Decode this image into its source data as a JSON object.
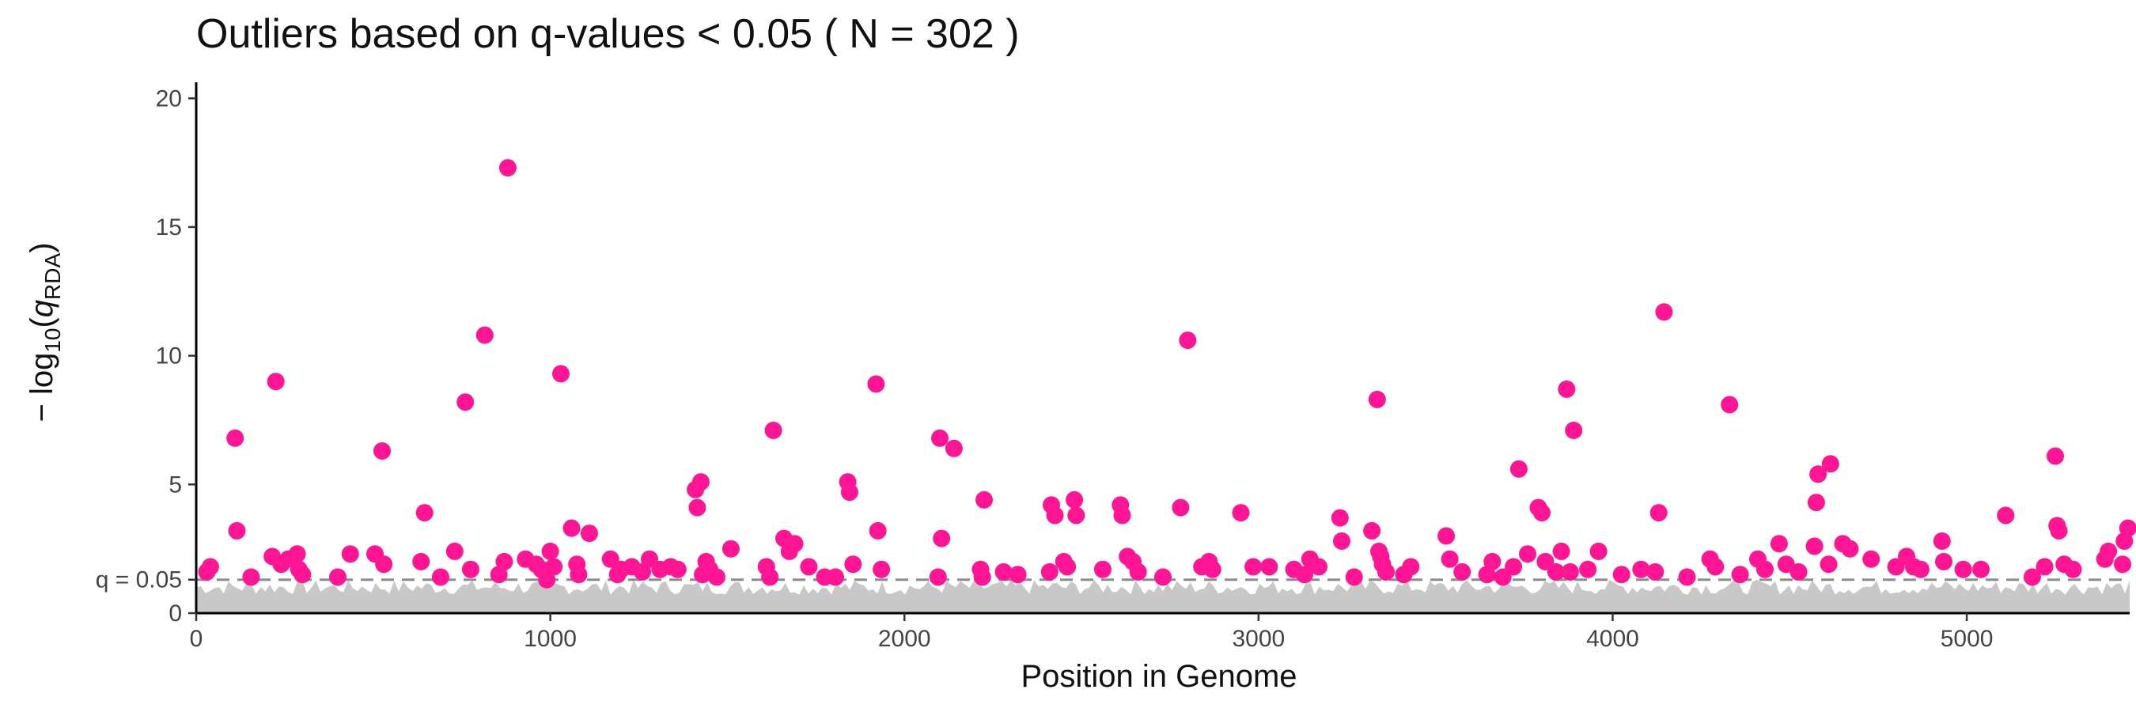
{
  "chart_data": {
    "type": "scatter",
    "title": "Outliers based on q-values < 0.05 ( N = 302 )",
    "xlabel": "Position in Genome",
    "ylabel": {
      "prefix": "− log",
      "sub1": "10",
      "open": "(",
      "var": "q",
      "sub2": "RDA",
      "close": ")"
    },
    "xlim": [
      0,
      5460
    ],
    "ylim": [
      0,
      20.5
    ],
    "x_ticks": [
      0,
      1000,
      2000,
      3000,
      4000,
      5000
    ],
    "x_tick_labels": [
      "0",
      "1000",
      "2000",
      "3000",
      "4000",
      "5000"
    ],
    "y_ticks": [
      0,
      1.3,
      5,
      10,
      15,
      20
    ],
    "y_tick_labels": [
      "0",
      "q = 0.05",
      "5",
      "10",
      "15",
      "20"
    ],
    "threshold": {
      "y": 1.3,
      "label": "q = 0.05",
      "style": "dashed",
      "color": "#8c8c8c"
    },
    "grid": false,
    "colors": {
      "outlier": "#ff1493",
      "background": "#c8c8c8",
      "threshold": "#8c8c8c"
    },
    "background_band": {
      "description": "non-significant loci",
      "x": [
        0,
        5460
      ],
      "y_max_approx": 1.3
    },
    "series": [
      {
        "points": [
          [
            30,
            1.6
          ],
          [
            40,
            1.8
          ],
          [
            110,
            6.8
          ],
          [
            115,
            3.2
          ],
          [
            155,
            1.4
          ],
          [
            215,
            2.2
          ],
          [
            225,
            9.0
          ],
          [
            240,
            1.9
          ],
          [
            260,
            2.1
          ],
          [
            285,
            2.3
          ],
          [
            290,
            1.7
          ],
          [
            300,
            1.5
          ],
          [
            400,
            1.4
          ],
          [
            435,
            2.3
          ],
          [
            505,
            2.3
          ],
          [
            525,
            6.3
          ],
          [
            530,
            1.9
          ],
          [
            635,
            2.0
          ],
          [
            645,
            3.9
          ],
          [
            690,
            1.4
          ],
          [
            730,
            2.4
          ],
          [
            760,
            8.2
          ],
          [
            775,
            1.7
          ],
          [
            815,
            10.8
          ],
          [
            855,
            1.5
          ],
          [
            870,
            2.0
          ],
          [
            880,
            17.3
          ],
          [
            930,
            2.1
          ],
          [
            960,
            1.9
          ],
          [
            975,
            1.7
          ],
          [
            990,
            1.3
          ],
          [
            1000,
            2.4
          ],
          [
            1010,
            1.8
          ],
          [
            1030,
            9.3
          ],
          [
            1060,
            3.3
          ],
          [
            1075,
            1.9
          ],
          [
            1080,
            1.5
          ],
          [
            1110,
            3.1
          ],
          [
            1170,
            2.1
          ],
          [
            1190,
            1.5
          ],
          [
            1200,
            1.7
          ],
          [
            1230,
            1.8
          ],
          [
            1260,
            1.6
          ],
          [
            1280,
            2.1
          ],
          [
            1310,
            1.7
          ],
          [
            1340,
            1.8
          ],
          [
            1360,
            1.7
          ],
          [
            1410,
            4.8
          ],
          [
            1415,
            4.1
          ],
          [
            1425,
            5.1
          ],
          [
            1430,
            1.5
          ],
          [
            1440,
            2.0
          ],
          [
            1450,
            1.7
          ],
          [
            1470,
            1.4
          ],
          [
            1510,
            2.5
          ],
          [
            1610,
            1.8
          ],
          [
            1620,
            1.4
          ],
          [
            1630,
            7.1
          ],
          [
            1660,
            2.9
          ],
          [
            1675,
            2.4
          ],
          [
            1690,
            2.7
          ],
          [
            1730,
            1.8
          ],
          [
            1775,
            1.4
          ],
          [
            1805,
            1.4
          ],
          [
            1840,
            5.1
          ],
          [
            1845,
            4.7
          ],
          [
            1855,
            1.9
          ],
          [
            1920,
            8.9
          ],
          [
            1925,
            3.2
          ],
          [
            1935,
            1.7
          ],
          [
            2095,
            1.4
          ],
          [
            2100,
            6.8
          ],
          [
            2105,
            2.9
          ],
          [
            2140,
            6.4
          ],
          [
            2215,
            1.7
          ],
          [
            2220,
            1.4
          ],
          [
            2225,
            4.4
          ],
          [
            2280,
            1.6
          ],
          [
            2320,
            1.5
          ],
          [
            2410,
            1.6
          ],
          [
            2415,
            4.2
          ],
          [
            2425,
            3.8
          ],
          [
            2450,
            2.0
          ],
          [
            2460,
            1.8
          ],
          [
            2480,
            4.4
          ],
          [
            2485,
            3.8
          ],
          [
            2560,
            1.7
          ],
          [
            2610,
            4.2
          ],
          [
            2615,
            3.8
          ],
          [
            2630,
            2.2
          ],
          [
            2645,
            2.0
          ],
          [
            2660,
            1.6
          ],
          [
            2730,
            1.4
          ],
          [
            2780,
            4.1
          ],
          [
            2800,
            10.6
          ],
          [
            2840,
            1.8
          ],
          [
            2860,
            2.0
          ],
          [
            2870,
            1.7
          ],
          [
            2950,
            3.9
          ],
          [
            2985,
            1.8
          ],
          [
            3030,
            1.8
          ],
          [
            3100,
            1.7
          ],
          [
            3130,
            1.5
          ],
          [
            3145,
            2.1
          ],
          [
            3170,
            1.8
          ],
          [
            3230,
            3.7
          ],
          [
            3235,
            2.8
          ],
          [
            3270,
            1.4
          ],
          [
            3320,
            3.2
          ],
          [
            3335,
            8.3
          ],
          [
            3340,
            2.4
          ],
          [
            3345,
            2.2
          ],
          [
            3350,
            1.9
          ],
          [
            3360,
            1.6
          ],
          [
            3410,
            1.5
          ],
          [
            3430,
            1.8
          ],
          [
            3530,
            3.0
          ],
          [
            3540,
            2.1
          ],
          [
            3575,
            1.6
          ],
          [
            3645,
            1.5
          ],
          [
            3660,
            2.0
          ],
          [
            3690,
            1.4
          ],
          [
            3720,
            1.8
          ],
          [
            3735,
            5.6
          ],
          [
            3760,
            2.3
          ],
          [
            3790,
            4.1
          ],
          [
            3800,
            3.9
          ],
          [
            3810,
            2.0
          ],
          [
            3840,
            1.6
          ],
          [
            3855,
            2.4
          ],
          [
            3870,
            8.7
          ],
          [
            3880,
            1.6
          ],
          [
            3890,
            7.1
          ],
          [
            3930,
            1.7
          ],
          [
            3960,
            2.4
          ],
          [
            4025,
            1.5
          ],
          [
            4080,
            1.7
          ],
          [
            4120,
            1.6
          ],
          [
            4130,
            3.9
          ],
          [
            4145,
            11.7
          ],
          [
            4210,
            1.4
          ],
          [
            4275,
            2.1
          ],
          [
            4290,
            1.8
          ],
          [
            4330,
            8.1
          ],
          [
            4360,
            1.5
          ],
          [
            4410,
            2.1
          ],
          [
            4430,
            1.7
          ],
          [
            4470,
            2.7
          ],
          [
            4490,
            1.9
          ],
          [
            4525,
            1.6
          ],
          [
            4570,
            2.6
          ],
          [
            4575,
            4.3
          ],
          [
            4580,
            5.4
          ],
          [
            4610,
            1.9
          ],
          [
            4615,
            5.8
          ],
          [
            4650,
            2.7
          ],
          [
            4670,
            2.5
          ],
          [
            4730,
            2.1
          ],
          [
            4800,
            1.8
          ],
          [
            4830,
            2.2
          ],
          [
            4850,
            1.8
          ],
          [
            4870,
            1.7
          ],
          [
            4930,
            2.8
          ],
          [
            4935,
            2.0
          ],
          [
            4990,
            1.7
          ],
          [
            5040,
            1.7
          ],
          [
            5110,
            3.8
          ],
          [
            5185,
            1.4
          ],
          [
            5220,
            1.8
          ],
          [
            5250,
            6.1
          ],
          [
            5255,
            3.4
          ],
          [
            5260,
            3.2
          ],
          [
            5275,
            1.9
          ],
          [
            5300,
            1.7
          ],
          [
            5390,
            2.1
          ],
          [
            5400,
            2.4
          ],
          [
            5440,
            1.9
          ],
          [
            5445,
            2.8
          ],
          [
            5455,
            3.3
          ]
        ]
      }
    ]
  }
}
